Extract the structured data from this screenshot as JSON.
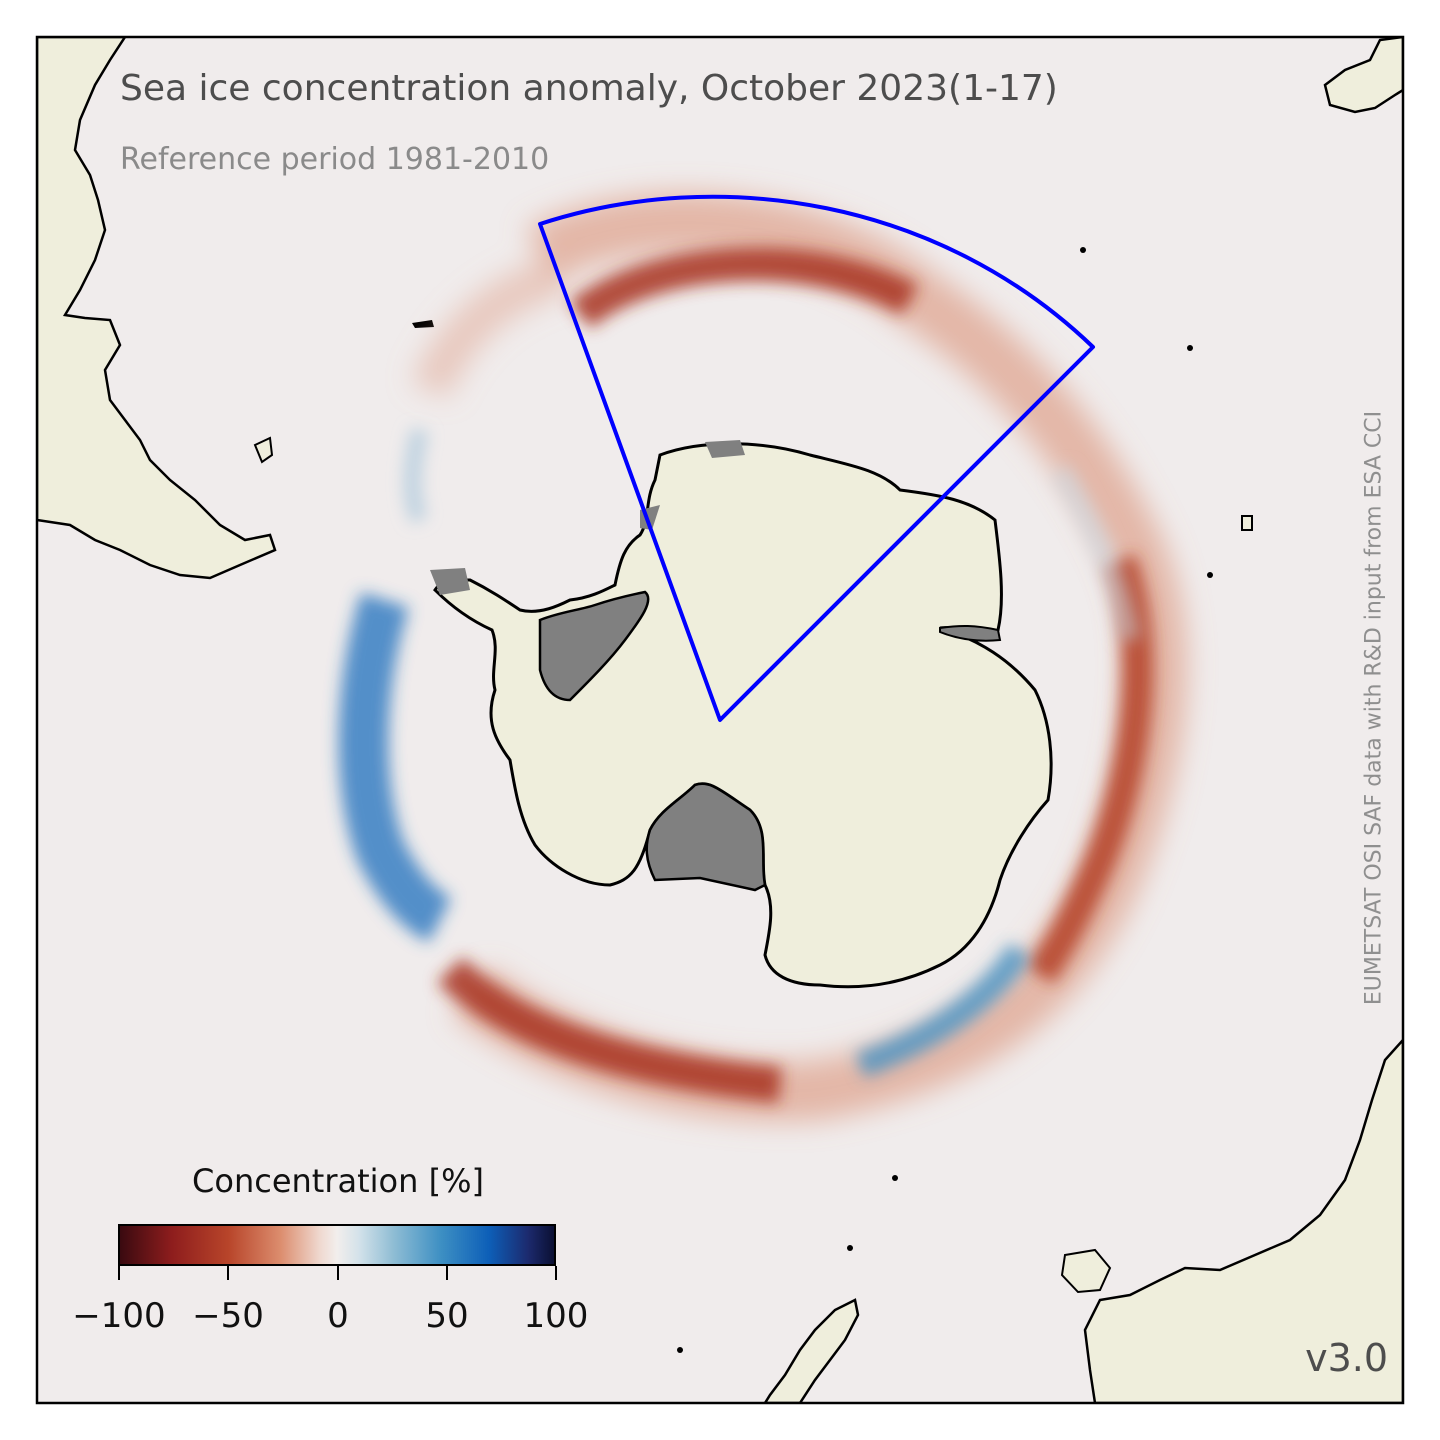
{
  "title": "Sea ice concentration anomaly, October 2023(1-17)",
  "subtitle": "Reference period 1981-2010",
  "credit": "EUMETSAT OSI SAF data with R&D input from ESA CCI",
  "version": "v3.0",
  "colors": {
    "ocean": "#f0ecec",
    "land": "#efeedc",
    "ice_shelf_gray": "#808080",
    "negative_anomaly": "#b8452a",
    "positive_anomaly": "#2a78c0",
    "sector_outline": "#0000ff"
  },
  "colorbar": {
    "label": "Concentration [%]",
    "colormap": "red-white-blue diverging",
    "range": [
      -100,
      100
    ],
    "ticks": [
      {
        "value": -100,
        "label": "−100"
      },
      {
        "value": -50,
        "label": "−50"
      },
      {
        "value": 0,
        "label": "0"
      },
      {
        "value": 50,
        "label": "50"
      },
      {
        "value": 100,
        "label": "100"
      }
    ]
  }
}
